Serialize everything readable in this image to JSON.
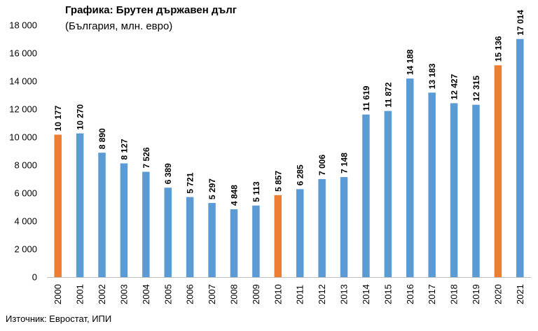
{
  "chart_data": {
    "type": "bar",
    "title": "Графика: Брутен държавен дълг",
    "subtitle": "(България, млн. евро)",
    "source": "Източник: Евростат, ИПИ",
    "categories": [
      "2000",
      "2001",
      "2002",
      "2003",
      "2004",
      "2005",
      "2006",
      "2007",
      "2008",
      "2009",
      "2010",
      "2011",
      "2012",
      "2013",
      "2014",
      "2015",
      "2016",
      "2017",
      "2018",
      "2019",
      "2020",
      "2021"
    ],
    "values": [
      10177,
      10270,
      8890,
      8127,
      7526,
      6389,
      5721,
      5297,
      4848,
      5113,
      5857,
      6285,
      7006,
      7148,
      11619,
      11872,
      14188,
      13183,
      12427,
      12315,
      15136,
      17014
    ],
    "value_labels": [
      "10 177",
      "10 270",
      "8 890",
      "8 127",
      "7 526",
      "6 389",
      "5 721",
      "5 297",
      "4 848",
      "5 113",
      "5 857",
      "6 285",
      "7 006",
      "7 148",
      "11 619",
      "11 872",
      "14 188",
      "13 183",
      "12 427",
      "12 315",
      "15 136",
      "17 014"
    ],
    "highlight_categories": [
      "2000",
      "2010",
      "2020"
    ],
    "colors": {
      "default": "#5B9BD5",
      "highlight": "#ED7D31"
    },
    "ylim": [
      0,
      18000
    ],
    "yticks": [
      0,
      2000,
      4000,
      6000,
      8000,
      10000,
      12000,
      14000,
      16000,
      18000
    ],
    "ytick_labels": [
      "0",
      "2 000",
      "4 000",
      "6 000",
      "8 000",
      "10 000",
      "12 000",
      "14 000",
      "16 000",
      "18 000"
    ],
    "xlabel": "",
    "ylabel": "",
    "grid": false,
    "legend": "none"
  }
}
